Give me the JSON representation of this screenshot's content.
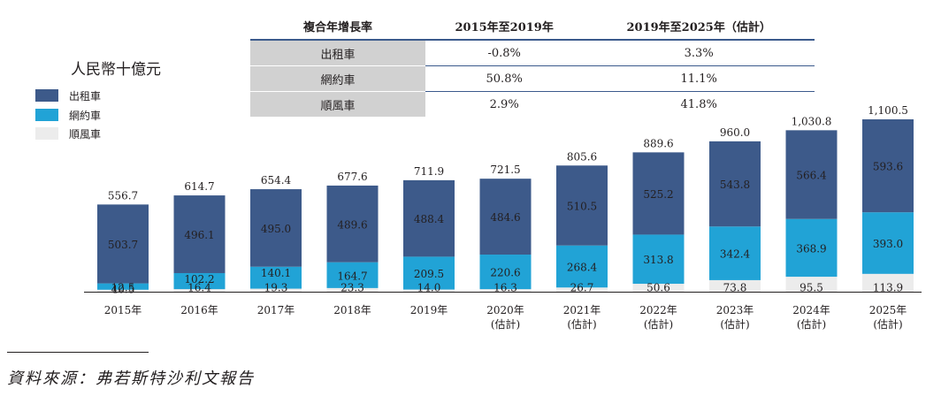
{
  "cagr_table": {
    "headers": [
      "複合年增長率",
      "2015年至2019年",
      "2019年至2025年（估計）"
    ],
    "rows": [
      {
        "label": "出租車",
        "v1": "-0.8%",
        "v2": "3.3%"
      },
      {
        "label": "網約車",
        "v1": "50.8%",
        "v2": "11.1%"
      },
      {
        "label": "順風車",
        "v1": "2.9%",
        "v2": "41.8%"
      }
    ]
  },
  "unit_label": "人民幣十億元",
  "legend": [
    {
      "label": "出租車",
      "color": "#3d5a8a"
    },
    {
      "label": "網約車",
      "color": "#21a3d6"
    },
    {
      "label": "順風車",
      "color": "#ececec"
    }
  ],
  "source_note": "資料來源：弗若斯特沙利文報告",
  "chart_data": {
    "type": "bar",
    "stacked": true,
    "categories": [
      "2015年",
      "2016年",
      "2017年",
      "2018年",
      "2019年",
      "2020年\n(估計)",
      "2021年\n(估計)",
      "2022年\n(估計)",
      "2023年\n(估計)",
      "2024年\n(估計)",
      "2025年\n(估計)"
    ],
    "series": [
      {
        "name": "順風車",
        "color": "#ececec",
        "values": [
          12.5,
          16.4,
          19.3,
          23.3,
          14.0,
          16.3,
          26.7,
          50.6,
          73.8,
          95.5,
          113.9
        ]
      },
      {
        "name": "網約車",
        "color": "#21a3d6",
        "values": [
          40.5,
          102.2,
          140.1,
          164.7,
          209.5,
          220.6,
          268.4,
          313.8,
          342.4,
          368.9,
          393.0
        ]
      },
      {
        "name": "出租車",
        "color": "#3d5a8a",
        "values": [
          503.7,
          496.1,
          495.0,
          489.6,
          488.4,
          484.6,
          510.5,
          525.2,
          543.8,
          566.4,
          593.6
        ]
      }
    ],
    "totals": [
      556.7,
      614.7,
      654.4,
      677.6,
      711.9,
      721.5,
      805.6,
      889.6,
      960.0,
      1030.8,
      1100.5
    ],
    "ylim": [
      0,
      1100.5
    ],
    "grid": false,
    "legend_position": "top-left"
  }
}
